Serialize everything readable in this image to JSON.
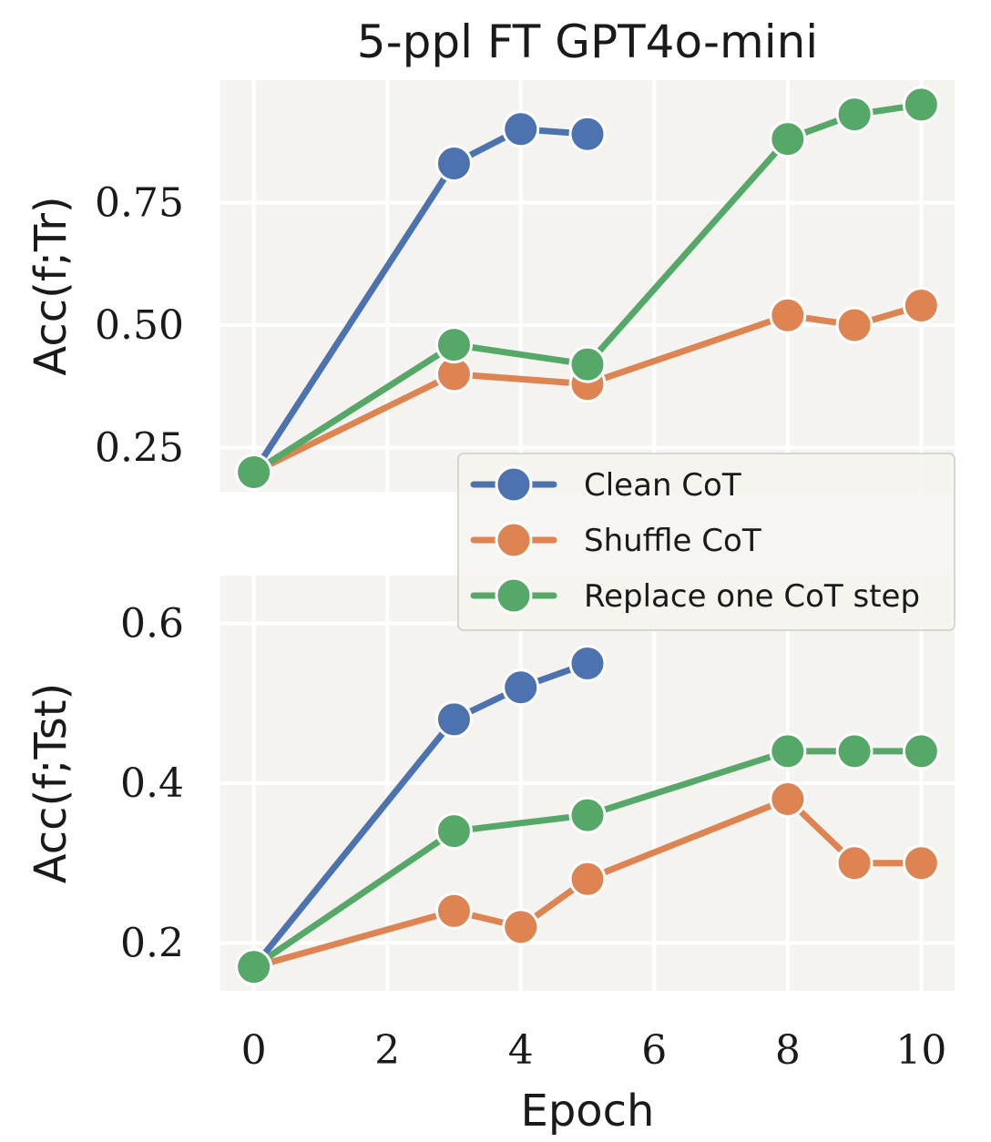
{
  "figure": {
    "title": "5-ppl FT GPT4o-mini",
    "xlabel": "Epoch",
    "background": "#ffffff",
    "panel_bg": "#f4f3ef",
    "grid_color": "#ffffff"
  },
  "legend": {
    "placement": "right, between panels",
    "entries": [
      {
        "label": "Clean CoT",
        "color": "#4c72b0"
      },
      {
        "label": "Shuffle CoT",
        "color": "#dd8452"
      },
      {
        "label": "Replace one CoT step",
        "color": "#55a868"
      }
    ]
  },
  "chart_data": [
    {
      "type": "line",
      "title": "5-ppl FT GPT4o-mini",
      "xlabel": "",
      "ylabel": "Acc(f;Tr)",
      "xlim": [
        -0.5,
        10.5
      ],
      "ylim": [
        0.16,
        1.0
      ],
      "xticks": [
        0,
        2,
        4,
        6,
        8,
        10
      ],
      "yticks": [
        0.25,
        0.5,
        0.75
      ],
      "ytick_labels": [
        "0.25",
        "0.50",
        "0.75"
      ],
      "grid": true,
      "series": [
        {
          "name": "Clean CoT",
          "color": "#4c72b0",
          "x": [
            0,
            3,
            4,
            5
          ],
          "y": [
            0.2,
            0.83,
            0.9,
            0.89
          ]
        },
        {
          "name": "Shuffle CoT",
          "color": "#dd8452",
          "x": [
            0,
            3,
            5,
            8,
            9,
            10
          ],
          "y": [
            0.2,
            0.4,
            0.38,
            0.52,
            0.5,
            0.54
          ]
        },
        {
          "name": "Replace one CoT step",
          "color": "#55a868",
          "x": [
            0,
            3,
            5,
            8,
            9,
            10
          ],
          "y": [
            0.2,
            0.46,
            0.42,
            0.88,
            0.93,
            0.95
          ]
        }
      ]
    },
    {
      "type": "line",
      "title": "",
      "xlabel": "Epoch",
      "ylabel": "Acc(f;Tst)",
      "xlim": [
        -0.5,
        10.5
      ],
      "ylim": [
        0.14,
        0.66
      ],
      "xticks": [
        0,
        2,
        4,
        6,
        8,
        10
      ],
      "xtick_labels": [
        "0",
        "2",
        "4",
        "6",
        "8",
        "10"
      ],
      "yticks": [
        0.2,
        0.4,
        0.6
      ],
      "ytick_labels": [
        "0.2",
        "0.4",
        "0.6"
      ],
      "grid": true,
      "series": [
        {
          "name": "Clean CoT",
          "color": "#4c72b0",
          "x": [
            0,
            3,
            4,
            5
          ],
          "y": [
            0.17,
            0.48,
            0.52,
            0.55
          ]
        },
        {
          "name": "Shuffle CoT",
          "color": "#dd8452",
          "x": [
            0,
            3,
            4,
            5,
            8,
            9,
            10
          ],
          "y": [
            0.17,
            0.24,
            0.22,
            0.28,
            0.38,
            0.3,
            0.3
          ]
        },
        {
          "name": "Replace one CoT step",
          "color": "#55a868",
          "x": [
            0,
            3,
            5,
            8,
            9,
            10
          ],
          "y": [
            0.17,
            0.34,
            0.36,
            0.44,
            0.44,
            0.44
          ]
        }
      ]
    }
  ]
}
